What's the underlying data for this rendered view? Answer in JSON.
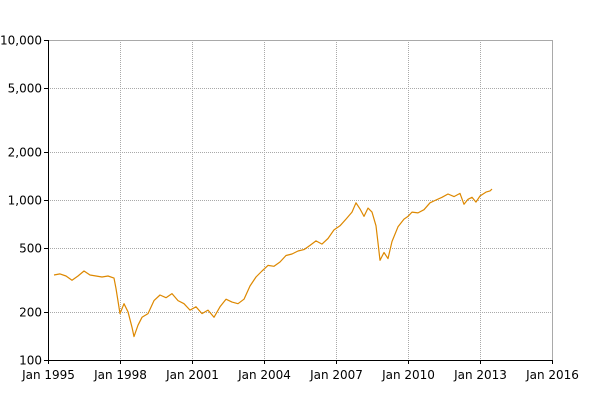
{
  "chart_data": {
    "type": "line",
    "title": "",
    "xlabel": "",
    "ylabel": "",
    "y_scale": "log",
    "ylim": [
      100,
      10000
    ],
    "xlim": [
      "1995-01",
      "2016-01"
    ],
    "grid": true,
    "legend": "none",
    "color": "#dd8800",
    "x_ticks": [
      {
        "date": "1995-01",
        "label": "Jan 1995"
      },
      {
        "date": "1998-01",
        "label": "Jan 1998"
      },
      {
        "date": "2001-01",
        "label": "Jan 2001"
      },
      {
        "date": "2004-01",
        "label": "Jan 2004"
      },
      {
        "date": "2007-01",
        "label": "Jan 2007"
      },
      {
        "date": "2010-01",
        "label": "Jan 2010"
      },
      {
        "date": "2013-01",
        "label": "Jan 2013"
      },
      {
        "date": "2016-01",
        "label": "Jan 2016"
      }
    ],
    "y_ticks": [
      {
        "value": 100,
        "label": "100"
      },
      {
        "value": 200,
        "label": "200"
      },
      {
        "value": 500,
        "label": "500"
      },
      {
        "value": 1000,
        "label": "1,000"
      },
      {
        "value": 2000,
        "label": "2,000"
      },
      {
        "value": 5000,
        "label": "5,000"
      },
      {
        "value": 10000,
        "label": "10,000"
      }
    ],
    "series": [
      {
        "points": [
          [
            "1995-04",
            340
          ],
          [
            "1995-07",
            345
          ],
          [
            "1995-10",
            335
          ],
          [
            "1996-01",
            315
          ],
          [
            "1996-04",
            335
          ],
          [
            "1996-07",
            360
          ],
          [
            "1996-10",
            340
          ],
          [
            "1997-01",
            335
          ],
          [
            "1997-04",
            330
          ],
          [
            "1997-07",
            335
          ],
          [
            "1997-10",
            325
          ],
          [
            "1997-11",
            280
          ],
          [
            "1998-01",
            195
          ],
          [
            "1998-03",
            225
          ],
          [
            "1998-05",
            200
          ],
          [
            "1998-07",
            160
          ],
          [
            "1998-08",
            140
          ],
          [
            "1998-10",
            165
          ],
          [
            "1998-12",
            185
          ],
          [
            "1999-03",
            195
          ],
          [
            "1999-06",
            235
          ],
          [
            "1999-09",
            255
          ],
          [
            "1999-12",
            245
          ],
          [
            "2000-03",
            260
          ],
          [
            "2000-06",
            235
          ],
          [
            "2000-09",
            225
          ],
          [
            "2000-12",
            205
          ],
          [
            "2001-03",
            215
          ],
          [
            "2001-06",
            195
          ],
          [
            "2001-09",
            205
          ],
          [
            "2001-12",
            185
          ],
          [
            "2002-03",
            215
          ],
          [
            "2002-06",
            240
          ],
          [
            "2002-09",
            230
          ],
          [
            "2002-12",
            225
          ],
          [
            "2003-03",
            240
          ],
          [
            "2003-06",
            290
          ],
          [
            "2003-09",
            330
          ],
          [
            "2003-12",
            360
          ],
          [
            "2004-03",
            390
          ],
          [
            "2004-06",
            385
          ],
          [
            "2004-09",
            410
          ],
          [
            "2004-12",
            450
          ],
          [
            "2005-03",
            460
          ],
          [
            "2005-06",
            480
          ],
          [
            "2005-09",
            490
          ],
          [
            "2005-12",
            520
          ],
          [
            "2006-03",
            555
          ],
          [
            "2006-06",
            530
          ],
          [
            "2006-09",
            575
          ],
          [
            "2006-12",
            650
          ],
          [
            "2007-03",
            690
          ],
          [
            "2007-06",
            760
          ],
          [
            "2007-09",
            840
          ],
          [
            "2007-11",
            960
          ],
          [
            "2008-01",
            880
          ],
          [
            "2008-03",
            790
          ],
          [
            "2008-05",
            890
          ],
          [
            "2008-07",
            840
          ],
          [
            "2008-09",
            690
          ],
          [
            "2008-10",
            540
          ],
          [
            "2008-11",
            420
          ],
          [
            "2009-01",
            470
          ],
          [
            "2009-03",
            430
          ],
          [
            "2009-05",
            550
          ],
          [
            "2009-08",
            680
          ],
          [
            "2009-11",
            760
          ],
          [
            "2010-01",
            790
          ],
          [
            "2010-03",
            840
          ],
          [
            "2010-06",
            830
          ],
          [
            "2010-09",
            870
          ],
          [
            "2010-12",
            960
          ],
          [
            "2011-03",
            1000
          ],
          [
            "2011-06",
            1040
          ],
          [
            "2011-09",
            1090
          ],
          [
            "2011-12",
            1050
          ],
          [
            "2012-03",
            1100
          ],
          [
            "2012-05",
            940
          ],
          [
            "2012-07",
            1010
          ],
          [
            "2012-09",
            1040
          ],
          [
            "2012-11",
            970
          ],
          [
            "2013-01",
            1060
          ],
          [
            "2013-04",
            1120
          ],
          [
            "2013-06",
            1140
          ],
          [
            "2013-07",
            1170
          ]
        ]
      }
    ]
  }
}
